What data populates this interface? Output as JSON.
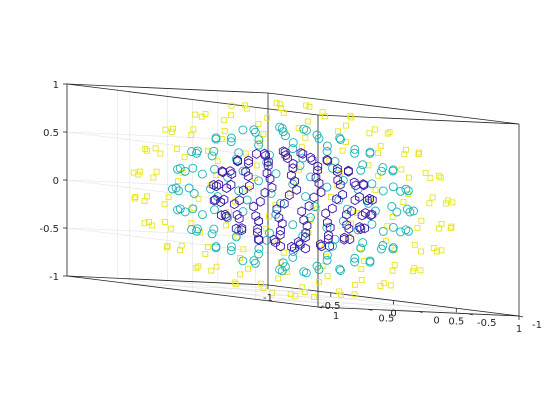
{
  "chart_data": {
    "type": "scatter",
    "projection": "3d",
    "grid": true,
    "box": true,
    "xlim": [
      -1,
      1
    ],
    "ylim": [
      -1,
      1
    ],
    "zlim": [
      -1,
      1
    ],
    "x_ticks": [
      "-1",
      "-0.5",
      "0",
      "0.5",
      "1"
    ],
    "y_ticks": [
      "-1",
      "-0.5",
      "0",
      "0.5",
      "1"
    ],
    "z_ticks": [
      "-1",
      "-0.5",
      "0",
      "0.5",
      "1"
    ],
    "series": [
      {
        "marker": "square",
        "color": "#E6E61A",
        "radius": 1.0,
        "lat_rings": 12,
        "points_per_ring": 24
      },
      {
        "marker": "circle",
        "color": "#17B3B3",
        "radius": 0.75,
        "lat_rings": 11,
        "points_per_ring": 22
      },
      {
        "marker": "hexagon",
        "color": "#3B15A8",
        "radius": 0.5,
        "lat_rings": 10,
        "points_per_ring": 20
      }
    ]
  }
}
